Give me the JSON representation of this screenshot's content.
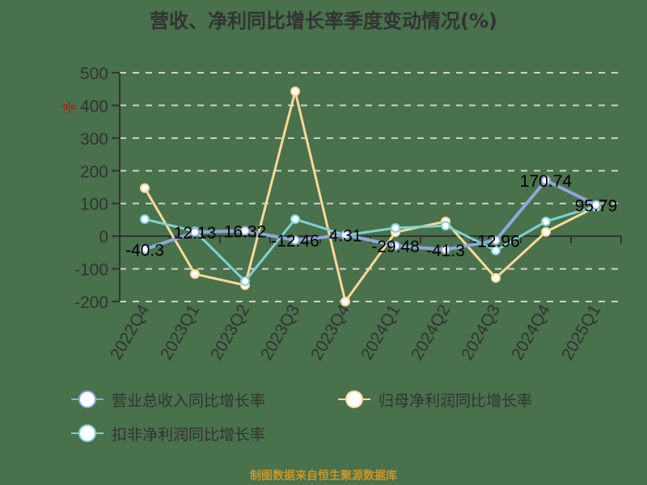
{
  "title": "营收、净利同比增长率季度变动情况(%)",
  "footer": "制图数据来自恒生聚源数据库",
  "y_unit_marker": "%",
  "legend": [
    {
      "label": "营业总收入同比增长率",
      "color": "#8fa8d8"
    },
    {
      "label": "归母净利润同比增长率",
      "color": "#fcd899"
    },
    {
      "label": "扣非净利润同比增长率",
      "color": "#7fd2d2"
    }
  ],
  "chart_data": {
    "type": "line",
    "title": "营收、净利同比增长率季度变动情况(%)",
    "xlabel": "",
    "ylabel": "%",
    "ylim": [
      -200,
      500
    ],
    "yticks": [
      500,
      400,
      300,
      200,
      100,
      0,
      -100,
      -200
    ],
    "grid": true,
    "legend_position": "bottom",
    "categories": [
      "2022Q4",
      "2023Q1",
      "2023Q2",
      "2023Q3",
      "2023Q4",
      "2024Q1",
      "2024Q2",
      "2024Q3",
      "2024Q4",
      "2025Q1"
    ],
    "series": [
      {
        "name": "营业总收入同比增长率",
        "color": "#8fa8d8",
        "values": [
          -40.3,
          12.13,
          16.32,
          -12.46,
          4.31,
          -29.48,
          -41.3,
          -12.96,
          170.74,
          95.79
        ],
        "labels": [
          "-40.3",
          "12.13",
          "16.32",
          "-12.46",
          "4.31",
          "-29.48",
          "-41.3",
          "-12.96",
          "170.74",
          "95.79"
        ]
      },
      {
        "name": "归母净利润同比增长率",
        "color": "#fcd899",
        "values": [
          147,
          -116,
          -150,
          443,
          -200,
          12,
          45,
          -128,
          13,
          90
        ]
      },
      {
        "name": "扣非净利润同比增长率",
        "color": "#7fd2d2",
        "values": [
          52,
          15,
          -138,
          52,
          3,
          25,
          32,
          -44,
          45,
          92
        ]
      }
    ]
  }
}
